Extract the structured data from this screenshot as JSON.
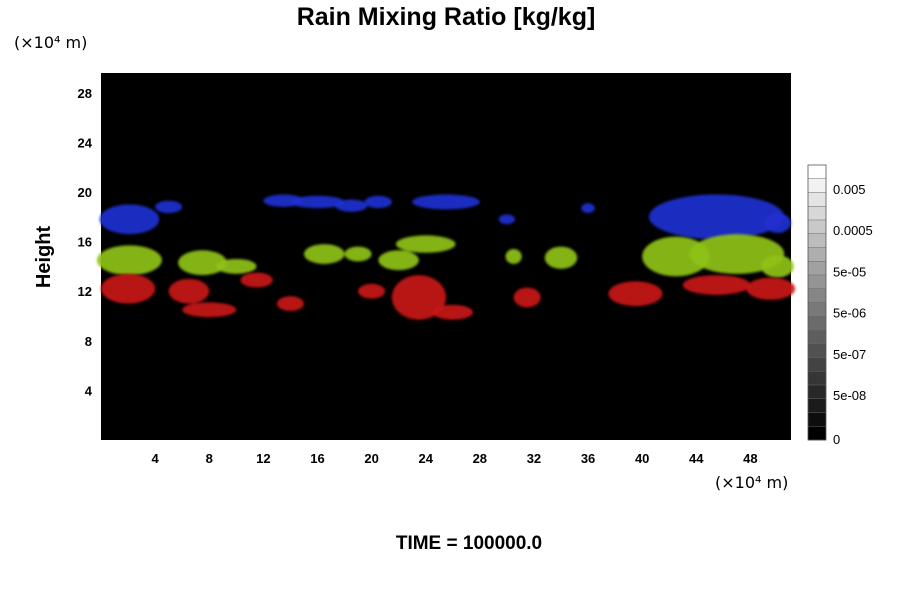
{
  "chart_data": {
    "type": "heatmap",
    "title": "Rain Mixing Ratio [kg/kg]",
    "ylabel": "Height",
    "xlabel": "",
    "x_unit": "(×10⁴ m)",
    "y_unit": "(×10⁴ m)",
    "x_ticks": [
      "4",
      "8",
      "12",
      "16",
      "20",
      "24",
      "28",
      "32",
      "36",
      "40",
      "44",
      "48"
    ],
    "y_ticks": [
      "4",
      "8",
      "12",
      "16",
      "20",
      "24",
      "28"
    ],
    "xlim": [
      0,
      51
    ],
    "ylim": [
      0,
      29.6
    ],
    "colorbar": {
      "labels": [
        "0",
        "5e-08",
        "5e-07",
        "5e-06",
        "5e-05",
        "0.0005",
        "0.005"
      ],
      "steps": 20,
      "gradient": [
        "#000000",
        "#ffffff"
      ]
    },
    "layers": [
      {
        "name": "upper",
        "color": "#1f2fd0",
        "y_range": [
          16.3,
          20.0
        ],
        "blobs": [
          [
            2.1,
            17.8,
            2.2,
            1.2
          ],
          [
            5.0,
            18.8,
            1.0,
            0.5
          ],
          [
            13.5,
            19.3,
            1.5,
            0.5
          ],
          [
            16.0,
            19.2,
            2.0,
            0.5
          ],
          [
            18.5,
            18.9,
            1.2,
            0.5
          ],
          [
            20.5,
            19.2,
            1.0,
            0.5
          ],
          [
            25.5,
            19.2,
            2.5,
            0.6
          ],
          [
            30.0,
            17.8,
            0.6,
            0.4
          ],
          [
            36.0,
            18.7,
            0.5,
            0.4
          ],
          [
            45.5,
            18.0,
            5.0,
            1.8
          ],
          [
            50.0,
            17.5,
            1.0,
            0.8
          ]
        ]
      },
      {
        "name": "middle",
        "color": "#8fc21a",
        "y_range": [
          13.4,
          16.5
        ],
        "blobs": [
          [
            2.1,
            14.5,
            2.4,
            1.2
          ],
          [
            7.5,
            14.3,
            1.8,
            1.0
          ],
          [
            10.0,
            14.0,
            1.5,
            0.6
          ],
          [
            16.5,
            15.0,
            1.5,
            0.8
          ],
          [
            19.0,
            15.0,
            1.0,
            0.6
          ],
          [
            22.0,
            14.5,
            1.5,
            0.8
          ],
          [
            24.0,
            15.8,
            2.2,
            0.7
          ],
          [
            30.5,
            14.8,
            0.6,
            0.6
          ],
          [
            34.0,
            14.7,
            1.2,
            0.9
          ],
          [
            42.5,
            14.8,
            2.5,
            1.6
          ],
          [
            47.0,
            15.0,
            3.5,
            1.6
          ],
          [
            50.0,
            14.0,
            1.2,
            0.9
          ]
        ]
      },
      {
        "name": "lower",
        "color": "#c81414",
        "y_range": [
          9.8,
          13.6
        ],
        "blobs": [
          [
            2.0,
            12.2,
            2.0,
            1.2
          ],
          [
            6.5,
            12.0,
            1.5,
            1.0
          ],
          [
            8.0,
            10.5,
            2.0,
            0.6
          ],
          [
            11.5,
            12.9,
            1.2,
            0.6
          ],
          [
            14.0,
            11.0,
            1.0,
            0.6
          ],
          [
            20.0,
            12.0,
            1.0,
            0.6
          ],
          [
            23.5,
            11.5,
            2.0,
            1.8
          ],
          [
            26.0,
            10.3,
            1.5,
            0.6
          ],
          [
            31.5,
            11.5,
            1.0,
            0.8
          ],
          [
            39.5,
            11.8,
            2.0,
            1.0
          ],
          [
            45.5,
            12.5,
            2.5,
            0.8
          ],
          [
            49.5,
            12.2,
            1.8,
            0.9
          ]
        ]
      }
    ],
    "background": "#000000",
    "grid": false,
    "legend": "colorbar-right"
  },
  "footer": {
    "time_label": "TIME = 100000.0"
  }
}
